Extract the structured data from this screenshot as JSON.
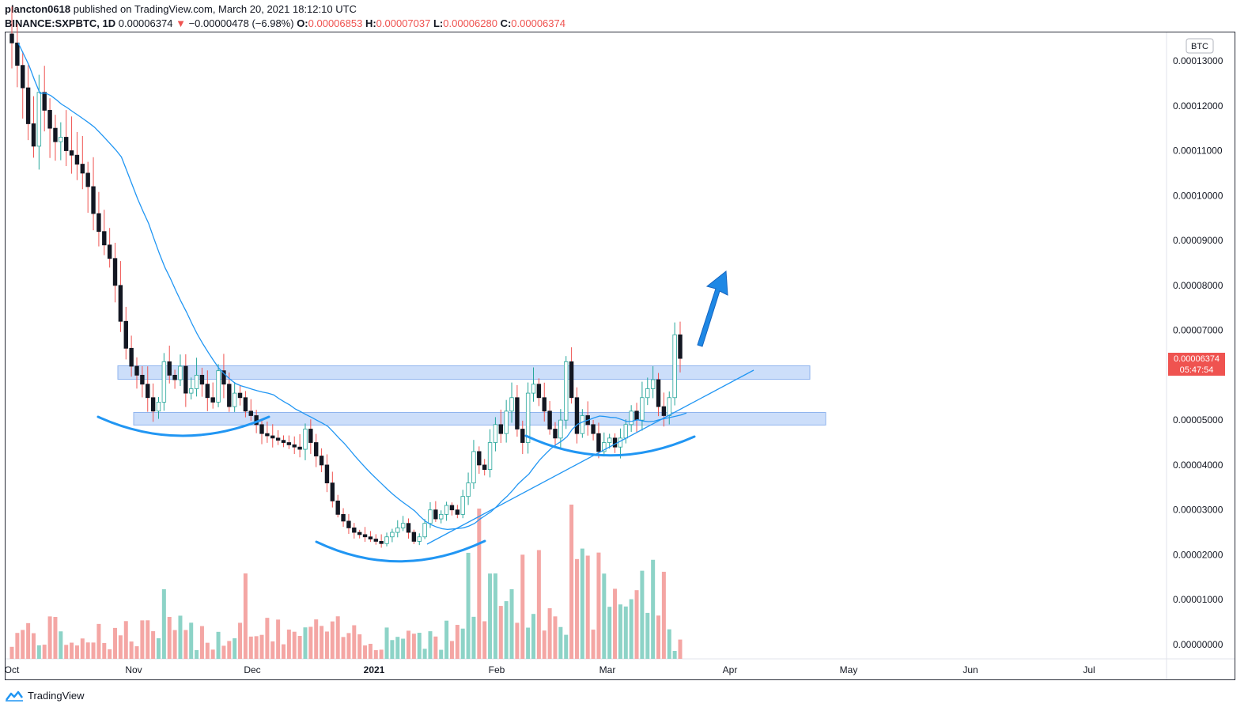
{
  "header": {
    "author": "plancton0618",
    "published_text": "published on TradingView.com, March 20, 2021 18:12:10 UTC",
    "symbol": "BINANCE:SXPBTC, 1D",
    "last": "0.00006374",
    "change": "−0.00000478 (−6.98%)",
    "open_label": "O:",
    "open": "0.00006853",
    "high_label": "H:",
    "high": "0.00007037",
    "low_label": "L:",
    "low": "0.00006280",
    "close_label": "C:",
    "close": "0.00006374"
  },
  "footer": {
    "brand": "TradingView"
  },
  "colors": {
    "up": "#26a69a",
    "down": "#ef5350",
    "vol_up": "#8dd3c7",
    "vol_down": "#f4a6a4",
    "ma": "#2196f3",
    "zone": "#1565e01f",
    "annot": "#2196f3"
  },
  "chart_data": {
    "type": "candlestick",
    "currency": "BTC",
    "y_ticks": [
      "0.00013000",
      "0.00012000",
      "0.00011000",
      "0.00010000",
      "0.00009000",
      "0.00008000",
      "0.00007000",
      "0.00006000",
      "0.00005000",
      "0.00004000",
      "0.00003000",
      "0.00002000",
      "0.00001000",
      "0.00000000"
    ],
    "x_ticks": [
      "Oct",
      "Nov",
      "Dec",
      "2021",
      "Feb",
      "Mar",
      "Apr",
      "May",
      "Jun",
      "Jul"
    ],
    "last_price_label": "0.00006374",
    "countdown": "05:47:54",
    "resistance_zones": [
      [
        5.91e-05,
        6.21e-05
      ],
      [
        4.89e-05,
        5.17e-05
      ]
    ],
    "annotations": [
      "rounded bottom arcs",
      "rising trendline",
      "up arrow"
    ]
  }
}
